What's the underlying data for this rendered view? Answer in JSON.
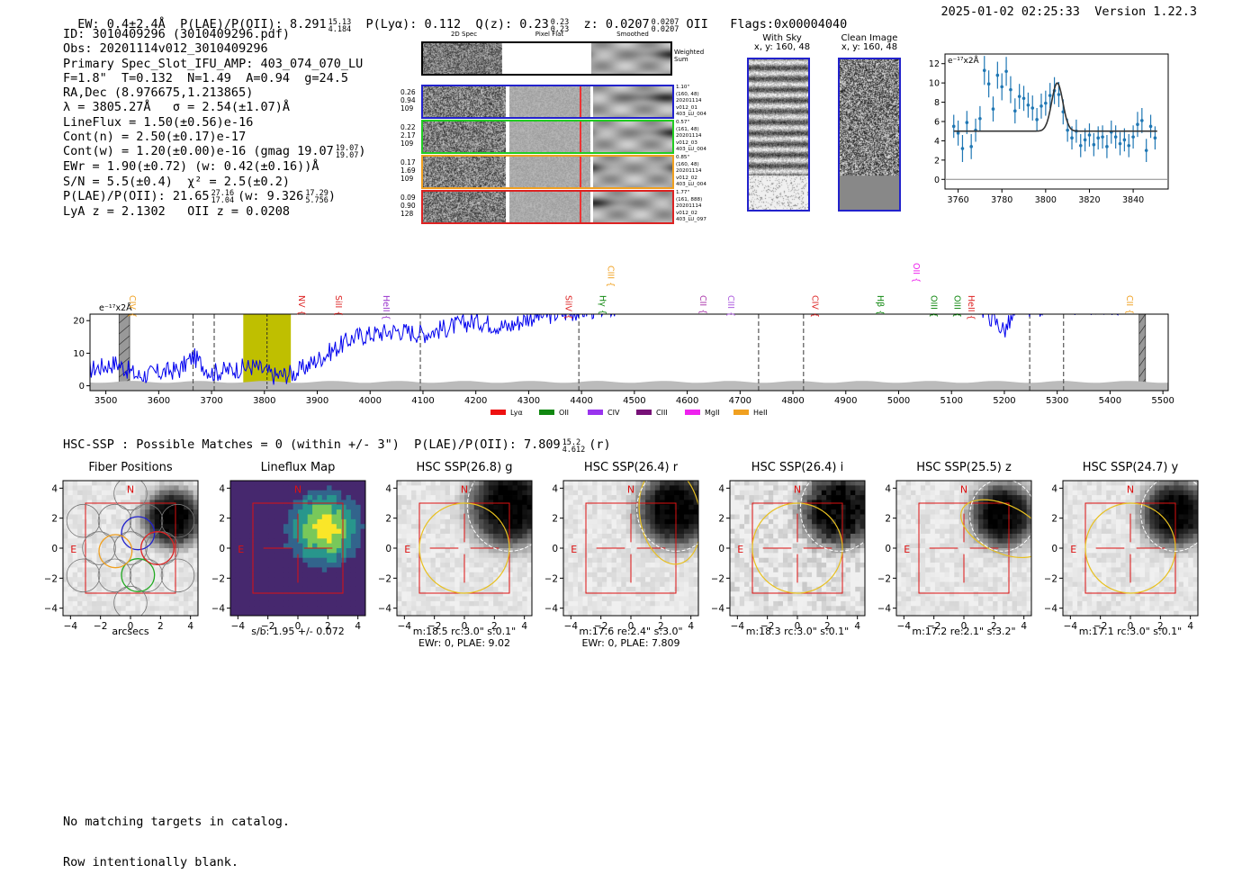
{
  "header": {
    "ew": "EW: 0.4±2.4Å",
    "plae": "P(LAE)/P(OII): 8.291",
    "plae_hi": "15.13",
    "plae_lo": "4.184",
    "plya": "P(Lyα): 0.112",
    "qz": "Q(z): 0.23",
    "qz_hi": "0.23",
    "qz_lo": "0.23",
    "z": "z: 0.0207",
    "z_hi": "0.0207",
    "z_lo": "0.0207",
    "z_line": "OII",
    "flags": "Flags:0x00004040",
    "datetime": "2025-01-02 02:25:33",
    "version": "Version 1.22.3"
  },
  "info": {
    "id": "ID: 3010409296 (3010409296.pdf)",
    "obs": "Obs: 20201114v012_3010409296",
    "primary": "Primary Spec_Slot_IFU_AMP: 403_074_070_LU",
    "params": "F=1.8\"  T=0.132  N=1.49  A=0.94  g=24.5",
    "radec": "RA,Dec (8.976675,1.213865)",
    "lambda": "λ = 3805.27Å   σ = 2.54(±1.07)Å",
    "lineflux": "LineFlux = 1.50(±0.56)e-16",
    "contn": "Cont(n) = 2.50(±0.17)e-17",
    "contw": "Cont(w) = 1.20(±0.00)e-16 (gmag 19.07",
    "contw_hi": "19.07",
    "contw_lo": "19.07",
    "ewr": "EWr = 1.90(±0.72) (w: 0.42(±0.16))Å",
    "snr": "S/N = 5.5(±0.4)  χ² = 2.5(±0.2)",
    "plae": "P(LAE)/P(OII): 21.65",
    "plae_hi": "27.16",
    "plae_lo": "17.04",
    "plae_w": "(w: 9.326",
    "plae_w_hi": "17.29",
    "plae_w_lo": "5.756",
    "lyaz": "LyA z = 2.1302   OII z = 0.0208"
  },
  "cutouts": {
    "col_labels": [
      "2D Spec",
      "Pixel Flat",
      "Smoothed"
    ],
    "weighted_label": "Weighted Sum",
    "rows": [
      {
        "color": "#2222cc",
        "left": [
          "0.26",
          "0.94",
          "109"
        ],
        "right": [
          "1.10\"",
          "(160, 48)",
          "20201114",
          "v012_01",
          "403_LU_004"
        ]
      },
      {
        "color": "#22cc22",
        "left": [
          "0.22",
          "2.17",
          "109"
        ],
        "right": [
          "0.57\"",
          "(161, 48)",
          "20201114",
          "v012_03",
          "403_LU_004"
        ]
      },
      {
        "color": "#f0a020",
        "left": [
          "0.17",
          "1.69",
          "109"
        ],
        "right": [
          "0.85\"",
          "(160, 48)",
          "20201114",
          "v012_02",
          "403_LU_004"
        ]
      },
      {
        "color": "#dd2222",
        "left": [
          "0.09",
          "0.90",
          "128"
        ],
        "right": [
          "1.77\"",
          "(161, 888)",
          "20201114",
          "v012_02",
          "403_LU_097"
        ]
      }
    ]
  },
  "sky": {
    "with_sky_title": "With Sky",
    "with_sky_coords": "x, y: 160, 48",
    "clean_title": "Clean Image",
    "clean_coords": "x, y: 160, 48"
  },
  "chart_data": [
    {
      "type": "scatter",
      "name": "line-fit",
      "ylabel": "e⁻¹⁷x2Å",
      "xlim": [
        3754,
        3856
      ],
      "ylim": [
        -1,
        13
      ],
      "xticks": [
        3760,
        3780,
        3800,
        3820,
        3840
      ],
      "yticks": [
        0,
        2,
        4,
        6,
        8,
        10,
        12
      ],
      "points": [
        [
          3758,
          5.5,
          1.2
        ],
        [
          3760,
          4.8,
          1.3
        ],
        [
          3762,
          3.2,
          1.4
        ],
        [
          3764,
          5.9,
          1.2
        ],
        [
          3766,
          3.4,
          1.3
        ],
        [
          3768,
          5.1,
          1.2
        ],
        [
          3770,
          6.3,
          1.3
        ],
        [
          3772,
          11.3,
          1.5
        ],
        [
          3774,
          9.9,
          1.4
        ],
        [
          3776,
          7.3,
          1.3
        ],
        [
          3778,
          10.8,
          1.4
        ],
        [
          3780,
          9.6,
          1.4
        ],
        [
          3782,
          11.2,
          1.5
        ],
        [
          3784,
          9.3,
          1.4
        ],
        [
          3786,
          7.1,
          1.3
        ],
        [
          3788,
          8.6,
          1.3
        ],
        [
          3790,
          8.4,
          1.3
        ],
        [
          3792,
          7.7,
          1.3
        ],
        [
          3794,
          7.4,
          1.3
        ],
        [
          3796,
          6.2,
          1.2
        ],
        [
          3798,
          7.6,
          1.3
        ],
        [
          3800,
          7.9,
          1.3
        ],
        [
          3802,
          8.7,
          1.3
        ],
        [
          3804,
          9.2,
          1.4
        ],
        [
          3806,
          8.8,
          1.3
        ],
        [
          3808,
          7.0,
          1.3
        ],
        [
          3810,
          5.1,
          1.2
        ],
        [
          3812,
          4.3,
          1.2
        ],
        [
          3814,
          5.0,
          1.2
        ],
        [
          3816,
          3.5,
          1.2
        ],
        [
          3818,
          4.1,
          1.2
        ],
        [
          3820,
          4.6,
          1.2
        ],
        [
          3822,
          3.6,
          1.2
        ],
        [
          3824,
          4.3,
          1.2
        ],
        [
          3826,
          4.4,
          1.2
        ],
        [
          3828,
          3.4,
          1.2
        ],
        [
          3830,
          4.9,
          1.2
        ],
        [
          3832,
          4.4,
          1.2
        ],
        [
          3834,
          3.7,
          1.2
        ],
        [
          3836,
          4.1,
          1.2
        ],
        [
          3838,
          3.5,
          1.2
        ],
        [
          3840,
          4.4,
          1.2
        ],
        [
          3842,
          5.7,
          1.3
        ],
        [
          3844,
          6.1,
          1.3
        ],
        [
          3846,
          3.0,
          1.2
        ],
        [
          3848,
          5.5,
          1.2
        ],
        [
          3850,
          4.3,
          1.2
        ]
      ],
      "fit": {
        "continuum": 5.0,
        "amplitude": 5.0,
        "center": 3805.3,
        "sigma": 2.54
      }
    },
    {
      "type": "line",
      "name": "full-spectrum",
      "ylabel": "e⁻¹⁷x2Å",
      "xlim": [
        3470,
        5510
      ],
      "ylim": [
        -1.5,
        22
      ],
      "xticks": [
        3500,
        3600,
        3700,
        3800,
        3900,
        4000,
        4100,
        4200,
        4300,
        4400,
        4500,
        4600,
        4700,
        4800,
        4900,
        5000,
        5100,
        5200,
        5300,
        5400,
        5500
      ],
      "yticks": [
        0,
        10,
        20
      ],
      "anchors": [
        [
          3470,
          5
        ],
        [
          3520,
          7
        ],
        [
          3560,
          3
        ],
        [
          3600,
          4
        ],
        [
          3640,
          5
        ],
        [
          3665,
          9
        ],
        [
          3700,
          4
        ],
        [
          3740,
          5
        ],
        [
          3780,
          6
        ],
        [
          3820,
          3
        ],
        [
          3860,
          4
        ],
        [
          3880,
          6
        ],
        [
          3920,
          10
        ],
        [
          3970,
          15
        ],
        [
          4050,
          17
        ],
        [
          4100,
          16
        ],
        [
          4200,
          20
        ],
        [
          4260,
          18
        ],
        [
          4300,
          21
        ],
        [
          4400,
          23
        ],
        [
          4460,
          24
        ],
        [
          4500,
          26
        ],
        [
          4700,
          26
        ],
        [
          5150,
          25
        ],
        [
          5200,
          17
        ],
        [
          5230,
          24
        ],
        [
          5500,
          25
        ]
      ],
      "error_level": 1.2,
      "highlight_band": [
        3760,
        3850
      ],
      "highlight_line": 3805,
      "dashed_lines": [
        3665,
        3705,
        4095,
        4395,
        4735,
        4820,
        5248,
        5312
      ],
      "masked": [
        [
          3525,
          3545
        ],
        [
          5455,
          5467
        ]
      ],
      "line_labels": [
        {
          "label": "CIV",
          "x": 3550,
          "color": "#f0a020"
        },
        {
          "label": "NV",
          "x": 3870,
          "color": "#dd2222"
        },
        {
          "label": "SiII",
          "x": 3940,
          "color": "#dd2222"
        },
        {
          "label": "HeII",
          "x": 4030,
          "color": "#9933cc"
        },
        {
          "label": "SiIV",
          "x": 4375,
          "color": "#dd2222"
        },
        {
          "label": "CIII",
          "x": 4455,
          "color": "#f0a020"
        },
        {
          "label": "Hγ",
          "x": 4440,
          "color": "#118811"
        },
        {
          "label": "CII",
          "x": 4630,
          "color": "#aa33aa"
        },
        {
          "label": "CIII",
          "x": 4682,
          "color": "#aa55dd"
        },
        {
          "label": "CIV",
          "x": 4842,
          "color": "#dd2222"
        },
        {
          "label": "Hβ",
          "x": 4965,
          "color": "#118811"
        },
        {
          "label": "OIII",
          "x": 5066,
          "color": "#118811"
        },
        {
          "label": "OII",
          "x": 5033,
          "color": "#ee22ee"
        },
        {
          "label": "OIII",
          "x": 5111,
          "color": "#118811"
        },
        {
          "label": "HeII",
          "x": 5137,
          "color": "#dd2222"
        },
        {
          "label": "CII",
          "x": 5437,
          "color": "#f0a020"
        }
      ],
      "legend": [
        {
          "label": "Lyα",
          "color": "#ee1111"
        },
        {
          "label": "OII",
          "color": "#118811"
        },
        {
          "label": "CIV",
          "color": "#9933ee"
        },
        {
          "label": "CIII",
          "color": "#771177"
        },
        {
          "label": "MgII",
          "color": "#ee22ee"
        },
        {
          "label": "HeII",
          "color": "#f0a020"
        }
      ]
    }
  ],
  "hsc": {
    "title": "HSC-SSP : Possible Matches = 0 (within +/- 3\")  P(LAE)/P(OII): 7.809",
    "title_hi": "15.2",
    "title_lo": "4.612",
    "title_band": "(r)",
    "ticks": [
      "−4",
      "−2",
      "0",
      "2",
      "4"
    ],
    "compass_n": "N",
    "compass_e": "E",
    "panels": [
      {
        "title": "Fiber Positions",
        "caption": "arcsecs",
        "caption2": ""
      },
      {
        "title": "Lineflux Map",
        "caption": "s/b: 1.95 +/- 0.072",
        "caption2": ""
      },
      {
        "title": "HSC SSP(26.8) g",
        "caption": "m:18.5 rc:3.0\"  s:0.1\"",
        "caption2": "EWr: 0, PLAE: 9.02"
      },
      {
        "title": "HSC SSP(26.4) r",
        "caption": "m:17.6  re:2.4\"  s:3.0\"",
        "caption2": "EWr: 0, PLAE: 7.809"
      },
      {
        "title": "HSC SSP(26.4) i",
        "caption": "m:18.3 rc:3.0\"  s:0.1\"",
        "caption2": ""
      },
      {
        "title": "HSC SSP(25.5) z",
        "caption": "m:17.2  re:2.1\"  s:3.2\"",
        "caption2": ""
      },
      {
        "title": "HSC SSP(24.7) y",
        "caption": "m:17.1 rc:3.0\"  s:0.1\"",
        "caption2": ""
      }
    ]
  },
  "footer": {
    "line1": "No matching targets in catalog.",
    "line2": "Row intentionally blank."
  }
}
